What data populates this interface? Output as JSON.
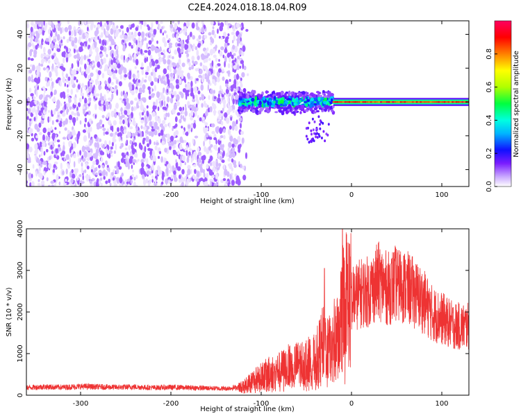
{
  "title": "C2E4.2024.018.18.04.R09",
  "chart_data": [
    {
      "type": "heatmap",
      "xlabel": "Height of straight line (km)",
      "ylabel": "Frequency (Hz)",
      "xlim": [
        -360,
        130
      ],
      "ylim": [
        -50,
        48
      ],
      "xticks": [
        -300,
        -200,
        -100,
        0,
        100
      ],
      "yticks": [
        -40,
        -20,
        0,
        20,
        40
      ],
      "grid": false,
      "colorbar": {
        "label": "Normalized spectral amplitude",
        "range": [
          0.0,
          1.0
        ],
        "ticks": [
          0.0,
          0.2,
          0.4,
          0.6,
          0.8
        ],
        "colormap_stops": [
          "#ffffff",
          "#c9a8ff",
          "#7a1cff",
          "#1010ff",
          "#00b5ff",
          "#00ffe0",
          "#00ff40",
          "#b0ff00",
          "#ffff00",
          "#ff8000",
          "#ff0000",
          "#ff0060"
        ]
      },
      "regions": [
        {
          "x": [
            -360,
            -120
          ],
          "freq_range": [
            -50,
            48
          ],
          "amplitude": 0.08,
          "description": "broadband noise"
        },
        {
          "x": [
            -125,
            -20
          ],
          "freq_center": 0,
          "freq_halfwidth": 6,
          "amplitude": 0.35
        },
        {
          "x": [
            -20,
            130
          ],
          "freq_center": 0,
          "freq_halfwidth": 2,
          "amplitude": 0.85
        }
      ]
    },
    {
      "type": "line",
      "xlabel": "Height of straight line (km)",
      "ylabel": "SNR (10 * v/v)",
      "xlim": [
        -360,
        130
      ],
      "ylim": [
        0,
        4000
      ],
      "xticks": [
        -300,
        -200,
        -100,
        0,
        100
      ],
      "yticks": [
        0,
        1000,
        2000,
        3000,
        4000
      ],
      "color": "#ee3333",
      "grid": false,
      "series": [
        {
          "x": [
            -360,
            -340,
            -320,
            -300,
            -280,
            -260,
            -240,
            -220,
            -200,
            -180,
            -160,
            -140,
            -120,
            -110,
            -100,
            -90,
            -80,
            -70,
            -60,
            -50,
            -40,
            -35,
            -30,
            -25,
            -20,
            -15,
            -10,
            -5,
            0,
            10,
            20,
            30,
            40,
            50,
            60,
            70,
            80,
            90,
            100,
            110,
            120,
            130
          ],
          "values": [
            180,
            200,
            190,
            210,
            200,
            190,
            200,
            180,
            190,
            180,
            170,
            160,
            200,
            350,
            450,
            550,
            600,
            700,
            750,
            800,
            850,
            1100,
            1300,
            1100,
            1300,
            1500,
            2100,
            2400,
            2300,
            2450,
            2500,
            2750,
            2550,
            2700,
            2600,
            2450,
            2250,
            1950,
            1850,
            1700,
            1650,
            1650
          ],
          "peaks": [
            {
              "x": -10,
              "value": 4000
            },
            {
              "x": -30,
              "value": 3050
            },
            {
              "x": 33,
              "value": 3200
            },
            {
              "x": 52,
              "value": 3100
            }
          ]
        }
      ]
    }
  ]
}
